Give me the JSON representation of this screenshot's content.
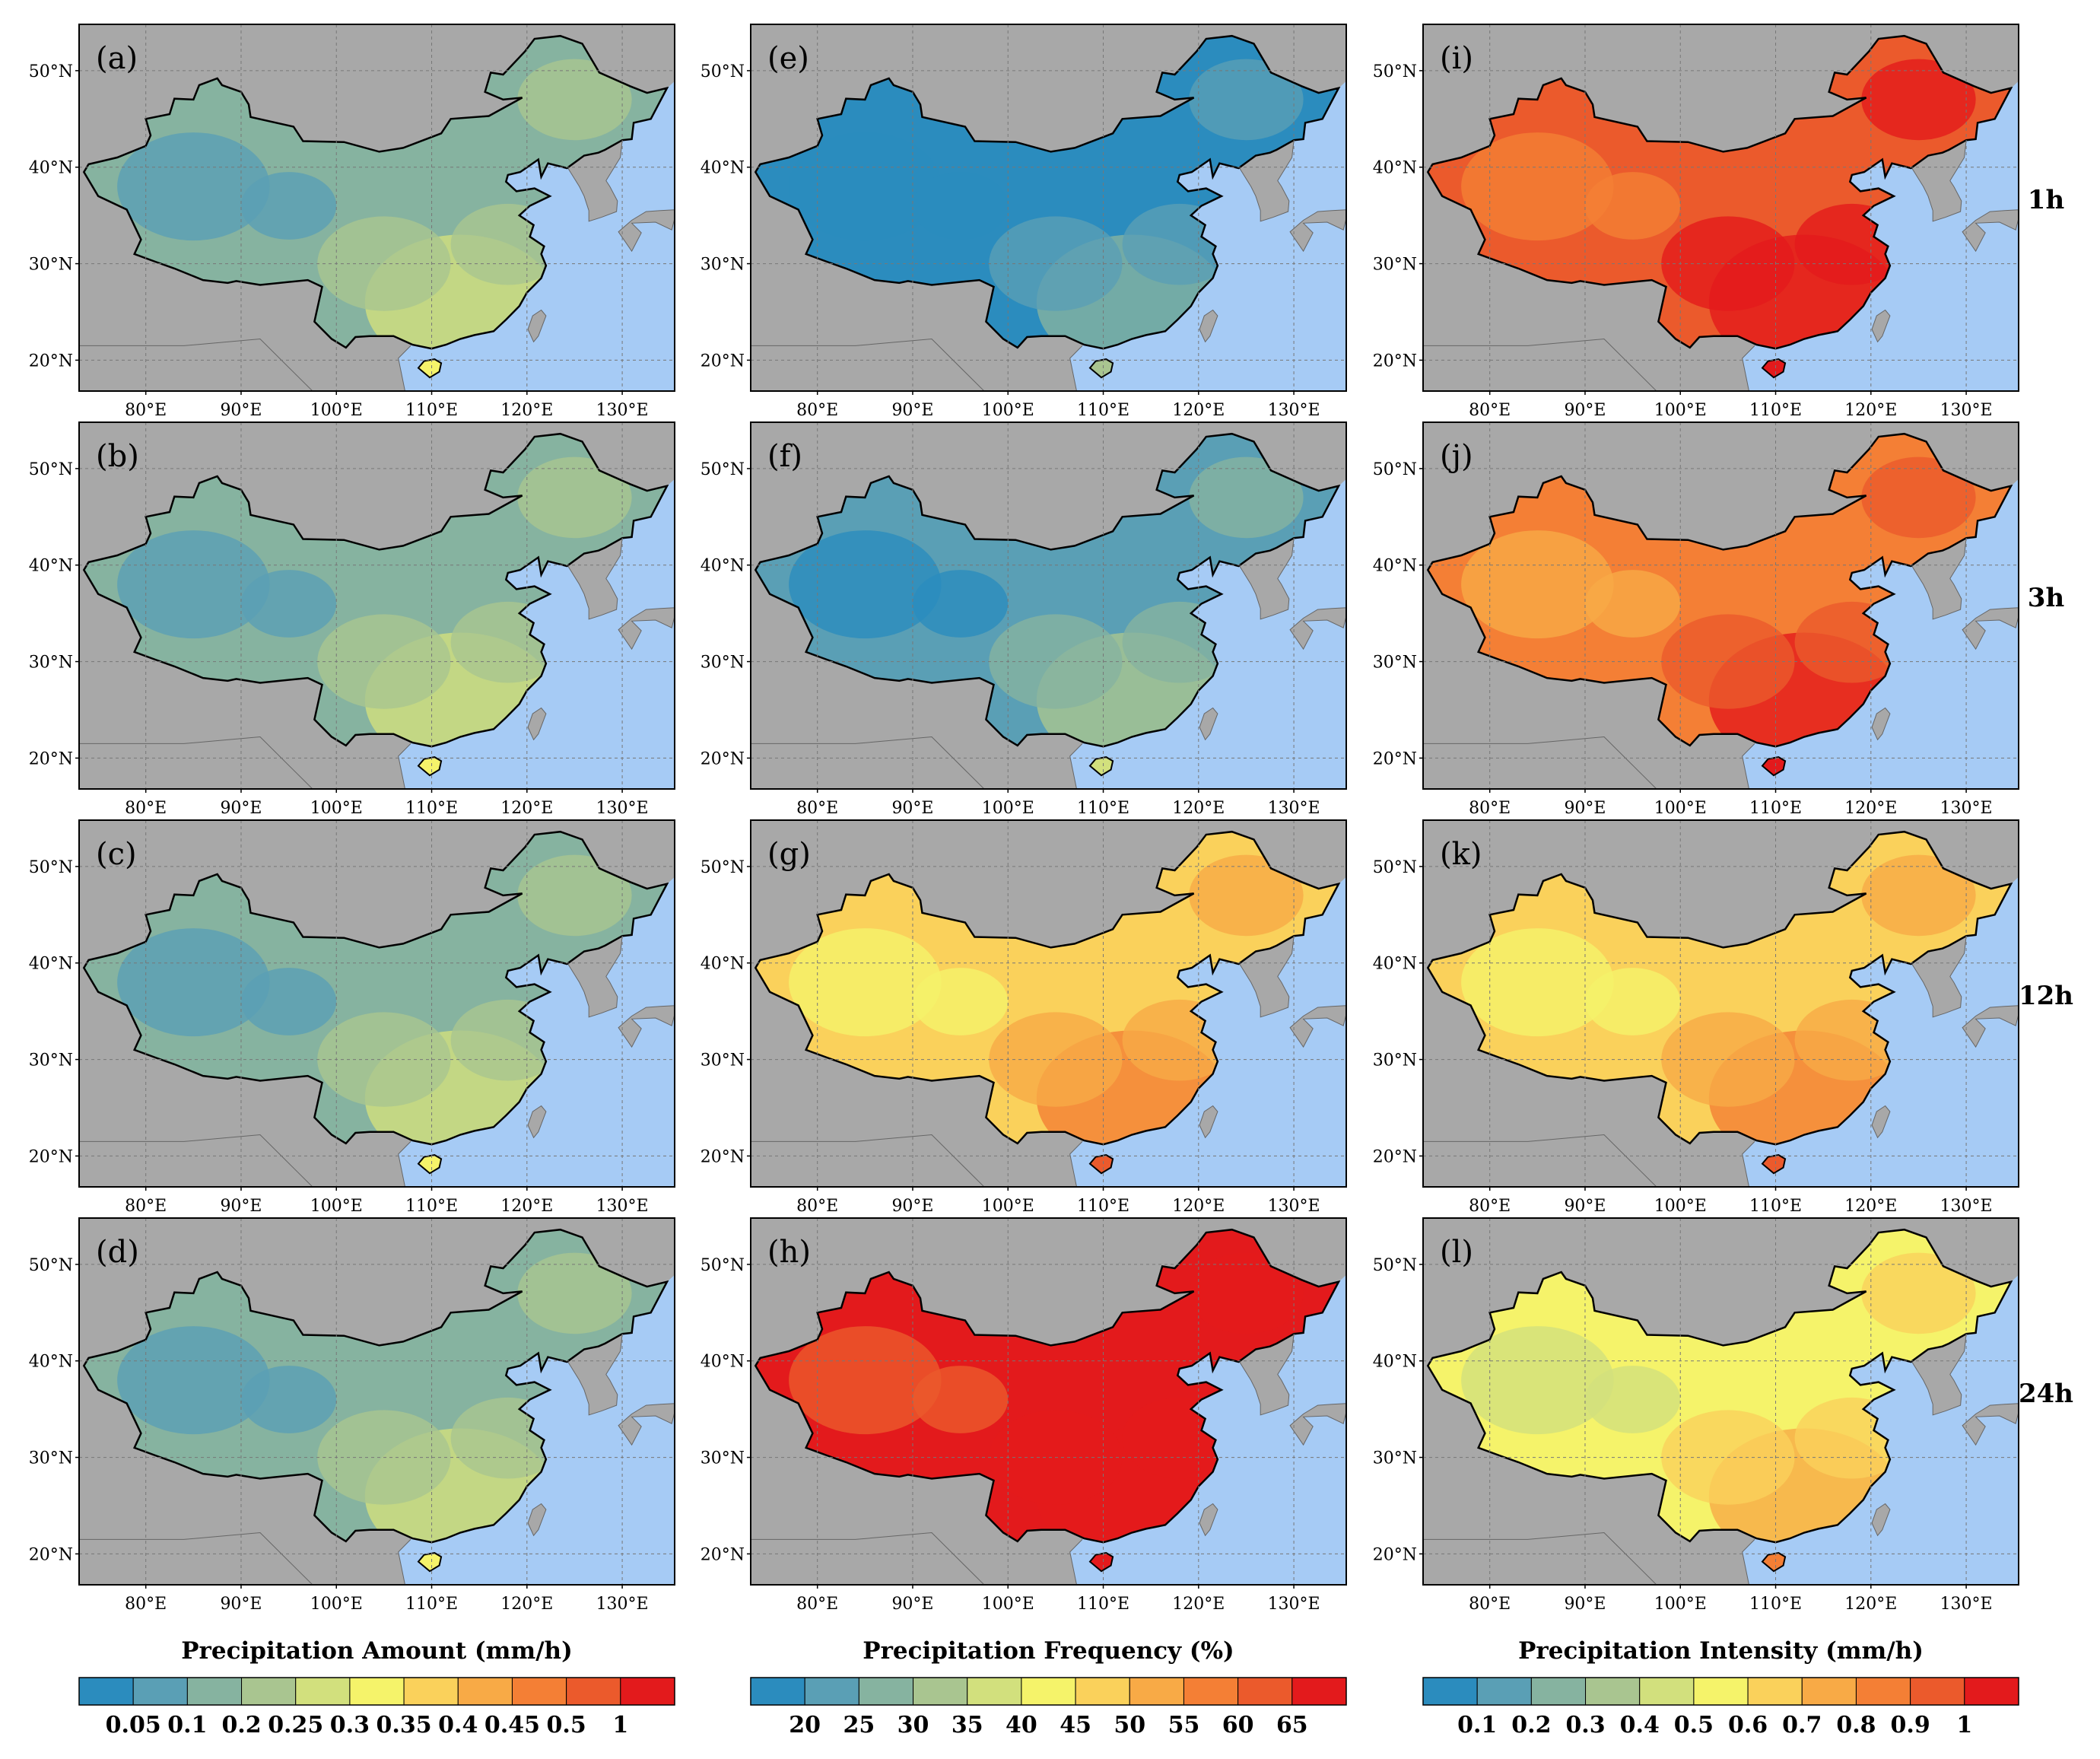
{
  "figure": {
    "lat_ticks": [
      "50°N",
      "40°N",
      "30°N",
      "20°N"
    ],
    "lon_ticks": [
      "80°E",
      "90°E",
      "100°E",
      "110°E",
      "120°E",
      "130°E"
    ],
    "row_labels": [
      "1h",
      "3h",
      "12h",
      "24h"
    ],
    "columns": [
      {
        "variable": "Precipitation Amount",
        "colorbar_title": "Precipitation Amount (mm/h)",
        "colorbar_ticks": [
          "0.05",
          "0.1",
          "0.2",
          "0.25",
          "0.3",
          "0.35",
          "0.4",
          "0.45",
          "0.5",
          "1"
        ],
        "panels": [
          {
            "label": "(a)",
            "duration": "1h"
          },
          {
            "label": "(b)",
            "duration": "3h"
          },
          {
            "label": "(c)",
            "duration": "12h"
          },
          {
            "label": "(d)",
            "duration": "24h"
          }
        ]
      },
      {
        "variable": "Precipitation Frequency",
        "colorbar_title": "Precipitation Frequency (%)",
        "colorbar_ticks": [
          "20",
          "25",
          "30",
          "35",
          "40",
          "45",
          "50",
          "55",
          "60",
          "65"
        ],
        "panels": [
          {
            "label": "(e)",
            "duration": "1h"
          },
          {
            "label": "(f)",
            "duration": "3h"
          },
          {
            "label": "(g)",
            "duration": "12h"
          },
          {
            "label": "(h)",
            "duration": "24h"
          }
        ]
      },
      {
        "variable": "Precipitation Intensity",
        "colorbar_title": "Precipitation Intensity (mm/h)",
        "colorbar_ticks": [
          "0.1",
          "0.2",
          "0.3",
          "0.4",
          "0.5",
          "0.6",
          "0.7",
          "0.8",
          "0.9",
          "1"
        ],
        "panels": [
          {
            "label": "(i)",
            "duration": "1h"
          },
          {
            "label": "(j)",
            "duration": "3h"
          },
          {
            "label": "(k)",
            "duration": "12h"
          },
          {
            "label": "(l)",
            "duration": "24h"
          }
        ]
      }
    ],
    "palette": [
      "#2b8cbe",
      "#5a9fb5",
      "#86b3a0",
      "#a9c590",
      "#d2e07d",
      "#f5f36a",
      "#fad15b",
      "#f8aa46",
      "#f47f35",
      "#eb5a2c",
      "#e31a1c"
    ],
    "colors": {
      "land_other": "#a8a8a8",
      "ocean": "#a6cbf5",
      "frame": "#000000",
      "grid": "#777777"
    },
    "panel_levels": [
      [
        2,
        2,
        2,
        2
      ],
      [
        0,
        1,
        6,
        10
      ],
      [
        9,
        8,
        6,
        5
      ]
    ]
  }
}
